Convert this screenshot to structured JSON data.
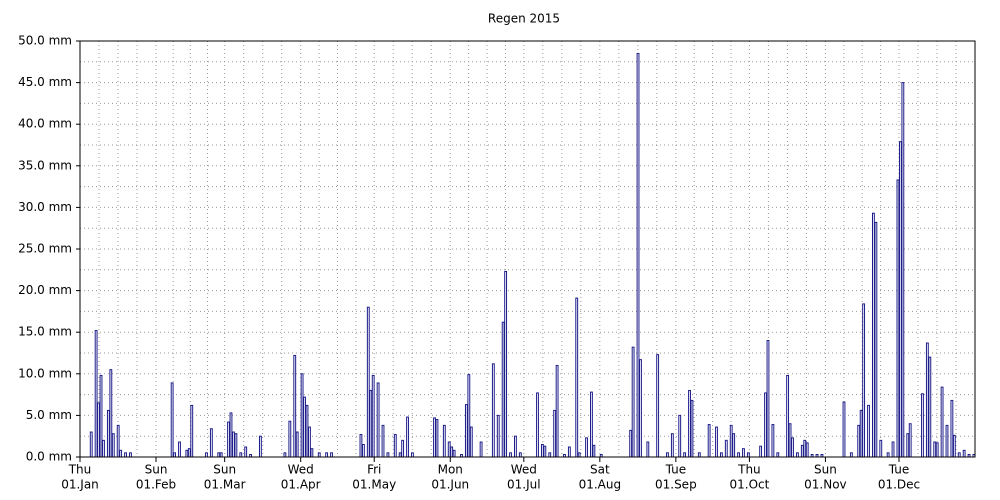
{
  "chart_data": {
    "type": "bar",
    "title": "Regen 2015",
    "color": "#1c1c8a",
    "values": [
      0,
      0,
      0,
      0,
      3,
      0,
      15.2,
      6.5,
      9.8,
      2,
      0,
      5.6,
      10.5,
      2.8,
      0,
      3.8,
      0.8,
      0,
      0.5,
      0,
      0.5,
      0,
      0,
      0,
      0,
      0,
      0,
      0,
      0,
      0,
      0,
      0,
      0,
      0,
      0,
      0,
      0,
      8.9,
      0.5,
      0,
      1.8,
      0,
      0,
      0.8,
      1,
      6.2,
      0,
      0,
      0,
      0,
      0,
      0.5,
      0,
      3.4,
      0,
      0,
      0.5,
      0.5,
      0,
      0,
      4.2,
      5.3,
      3,
      2.8,
      0,
      0.5,
      0,
      1.2,
      0,
      0.3,
      0,
      0,
      0,
      2.5,
      0,
      0,
      0,
      0,
      0,
      0,
      0,
      0,
      0,
      0.5,
      0,
      4.3,
      0,
      12.2,
      3,
      0,
      10,
      7.2,
      6.2,
      3.6,
      1,
      0,
      0,
      0.5,
      0,
      0,
      0.5,
      0,
      0.5,
      0,
      0,
      0,
      0,
      0,
      0,
      0,
      0,
      0,
      0,
      0,
      2.7,
      1.5,
      0,
      18,
      8,
      9.8,
      0,
      8.9,
      0,
      3.8,
      0,
      0.5,
      0,
      0,
      2.7,
      0,
      0.5,
      2,
      0,
      4.8,
      0,
      0.5,
      0,
      0,
      0,
      0,
      0,
      0,
      0,
      0,
      4.7,
      4.5,
      0,
      0,
      3.8,
      0,
      1.8,
      1.2,
      0.8,
      0,
      0,
      0.3,
      0,
      6.3,
      9.9,
      3.6,
      0,
      0,
      0,
      1.8,
      0,
      0,
      0,
      0,
      11.2,
      0,
      5,
      0,
      16.2,
      22.3,
      0,
      0.5,
      0,
      2.5,
      0,
      0.5,
      0,
      0,
      0,
      0,
      0,
      0,
      7.7,
      0,
      1.5,
      1.3,
      0,
      0.5,
      0,
      5.6,
      11,
      0,
      0,
      0.3,
      0,
      1.2,
      0,
      0,
      19.1,
      0.5,
      0,
      0,
      2.3,
      0,
      7.8,
      1.4,
      0,
      0,
      0.3,
      0,
      0,
      0,
      0,
      0,
      0,
      0,
      0,
      0,
      0,
      0,
      3.2,
      13.2,
      0,
      48.5,
      11.7,
      0,
      0,
      1.8,
      0,
      0,
      0,
      12.3,
      0,
      0,
      0,
      0.5,
      0,
      2.8,
      0,
      0,
      5,
      0,
      0.5,
      0,
      8,
      6.8,
      0,
      0,
      0.5,
      0,
      0,
      0,
      3.9,
      0,
      0,
      3.6,
      0,
      0.5,
      0,
      2,
      0,
      3.8,
      2.8,
      0,
      0.5,
      0,
      1,
      0,
      0.5,
      0,
      0,
      0,
      0,
      1.3,
      0,
      7.7,
      14,
      0,
      3.9,
      0,
      0.5,
      0,
      0,
      0,
      9.8,
      4,
      2.3,
      0,
      0.5,
      0,
      1.4,
      2,
      1.7,
      0,
      0.3,
      0,
      0.3,
      0,
      0.3,
      0,
      0,
      0,
      0,
      0,
      0,
      0,
      0,
      6.6,
      0,
      0,
      0.5,
      0,
      0,
      3.8,
      5.6,
      18.4,
      0,
      6.2,
      0,
      29.3,
      28.2,
      0,
      2,
      0,
      0,
      0.5,
      0,
      1.8,
      0,
      33.3,
      37.9,
      45,
      0,
      2.8,
      4,
      0,
      0,
      0,
      0,
      7.6,
      0,
      13.7,
      12,
      0,
      1.8,
      1.7,
      0,
      8.4,
      0,
      3.8,
      0,
      6.8,
      2.6,
      0,
      0.5,
      0,
      0.8,
      0,
      0.3,
      0,
      0.3
    ],
    "xlim": [
      0,
      365
    ],
    "xticks": [
      {
        "value": 0,
        "label": [
          "Thu",
          "01.Jan"
        ]
      },
      {
        "value": 31,
        "label": [
          "Sun",
          "01.Feb"
        ]
      },
      {
        "value": 59,
        "label": [
          "Sun",
          "01.Mar"
        ]
      },
      {
        "value": 90,
        "label": [
          "Wed",
          "01.Apr"
        ]
      },
      {
        "value": 120,
        "label": [
          "Fri",
          "01.May"
        ]
      },
      {
        "value": 151,
        "label": [
          "Mon",
          "01.Jun"
        ]
      },
      {
        "value": 181,
        "label": [
          "Wed",
          "01.Jul"
        ]
      },
      {
        "value": 212,
        "label": [
          "Sat",
          "01.Aug"
        ]
      },
      {
        "value": 243,
        "label": [
          "Tue",
          "01.Sep"
        ]
      },
      {
        "value": 273,
        "label": [
          "Thu",
          "01.Oct"
        ]
      },
      {
        "value": 304,
        "label": [
          "Sun",
          "01.Nov"
        ]
      },
      {
        "value": 334,
        "label": [
          "Tue",
          "01.Dec"
        ]
      }
    ],
    "ylim": [
      0,
      50
    ],
    "yticks": [
      {
        "value": 0,
        "label": "0.0 mm"
      },
      {
        "value": 5,
        "label": "5.0 mm"
      },
      {
        "value": 10,
        "label": "10.0 mm"
      },
      {
        "value": 15,
        "label": "15.0 mm"
      },
      {
        "value": 20,
        "label": "20.0 mm"
      },
      {
        "value": 25,
        "label": "25.0 mm"
      },
      {
        "value": 30,
        "label": "30.0 mm"
      },
      {
        "value": 35,
        "label": "35.0 mm"
      },
      {
        "value": 40,
        "label": "40.0 mm"
      },
      {
        "value": 45,
        "label": "45.0 mm"
      },
      {
        "value": 50,
        "label": "50.0 mm"
      }
    ],
    "grid": true
  }
}
